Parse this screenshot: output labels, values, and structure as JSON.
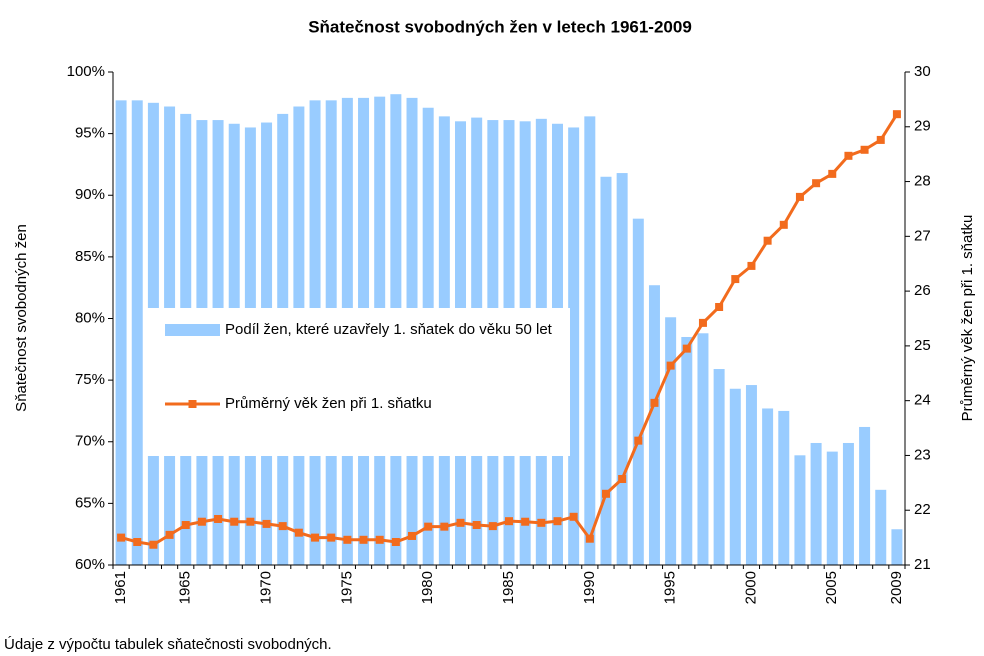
{
  "chart_data": {
    "type": "bar",
    "title": "Sňatečnost svobodných žen v letech 1961-2009",
    "ylabel": "Sňatečnost svobodných žen",
    "y2label": "Průměrný věk žen při 1. sňatku",
    "note": "Údaje z výpočtu tabulek sňatečnosti svobodných.",
    "categories": [
      "1961",
      null,
      null,
      null,
      "1965",
      null,
      null,
      null,
      null,
      "1970",
      null,
      null,
      null,
      null,
      "1975",
      null,
      null,
      null,
      null,
      "1980",
      null,
      null,
      null,
      null,
      "1985",
      null,
      null,
      null,
      null,
      "1990",
      null,
      null,
      null,
      null,
      "1995",
      null,
      null,
      null,
      null,
      "2000",
      null,
      null,
      null,
      null,
      "2005",
      null,
      null,
      null,
      "2009"
    ],
    "series": [
      {
        "name": "Podíl žen, které uzavřely 1. sňatek do věku 50 let",
        "type": "bar",
        "color": "#99ccff",
        "values": [
          97.7,
          97.7,
          97.5,
          97.2,
          96.6,
          96.1,
          96.1,
          95.8,
          95.5,
          95.9,
          96.6,
          97.2,
          97.7,
          97.7,
          97.9,
          97.9,
          98.0,
          98.2,
          97.9,
          97.1,
          96.4,
          96.0,
          96.3,
          96.1,
          96.1,
          96.0,
          96.2,
          95.8,
          95.5,
          96.4,
          91.5,
          91.8,
          88.1,
          82.7,
          80.1,
          78.5,
          78.8,
          75.9,
          74.3,
          74.6,
          72.7,
          72.5,
          68.9,
          69.9,
          69.2,
          69.9,
          71.2,
          66.1,
          62.9
        ]
      },
      {
        "name": "Průměrný věk žen při 1. sňatku",
        "type": "line",
        "axis": "y2",
        "color": "#f26b1d",
        "values": [
          21.5,
          21.42,
          21.37,
          21.55,
          21.73,
          21.79,
          21.84,
          21.79,
          21.79,
          21.75,
          21.71,
          21.59,
          21.5,
          21.5,
          21.46,
          21.46,
          21.46,
          21.42,
          21.53,
          21.7,
          21.7,
          21.77,
          21.73,
          21.71,
          21.8,
          21.79,
          21.77,
          21.8,
          21.88,
          21.48,
          22.3,
          22.57,
          23.27,
          23.96,
          24.64,
          24.95,
          25.42,
          25.71,
          26.22,
          26.46,
          26.92,
          27.21,
          27.72,
          27.97,
          28.14,
          28.47,
          28.58,
          28.76,
          29.23
        ]
      }
    ],
    "ylim": [
      60,
      100
    ],
    "yticks": [
      {
        "value": 60,
        "label": "60%"
      },
      {
        "value": 65,
        "label": "65%"
      },
      {
        "value": 70,
        "label": "70%"
      },
      {
        "value": 75,
        "label": "75%"
      },
      {
        "value": 80,
        "label": "80%"
      },
      {
        "value": 85,
        "label": "85%"
      },
      {
        "value": 90,
        "label": "90%"
      },
      {
        "value": 95,
        "label": "95%"
      },
      {
        "value": 100,
        "label": "100%"
      }
    ],
    "y2lim": [
      21,
      30
    ],
    "y2ticks": [
      21,
      22,
      23,
      24,
      25,
      26,
      27,
      28,
      29,
      30
    ],
    "grid": false,
    "legend": "left"
  }
}
